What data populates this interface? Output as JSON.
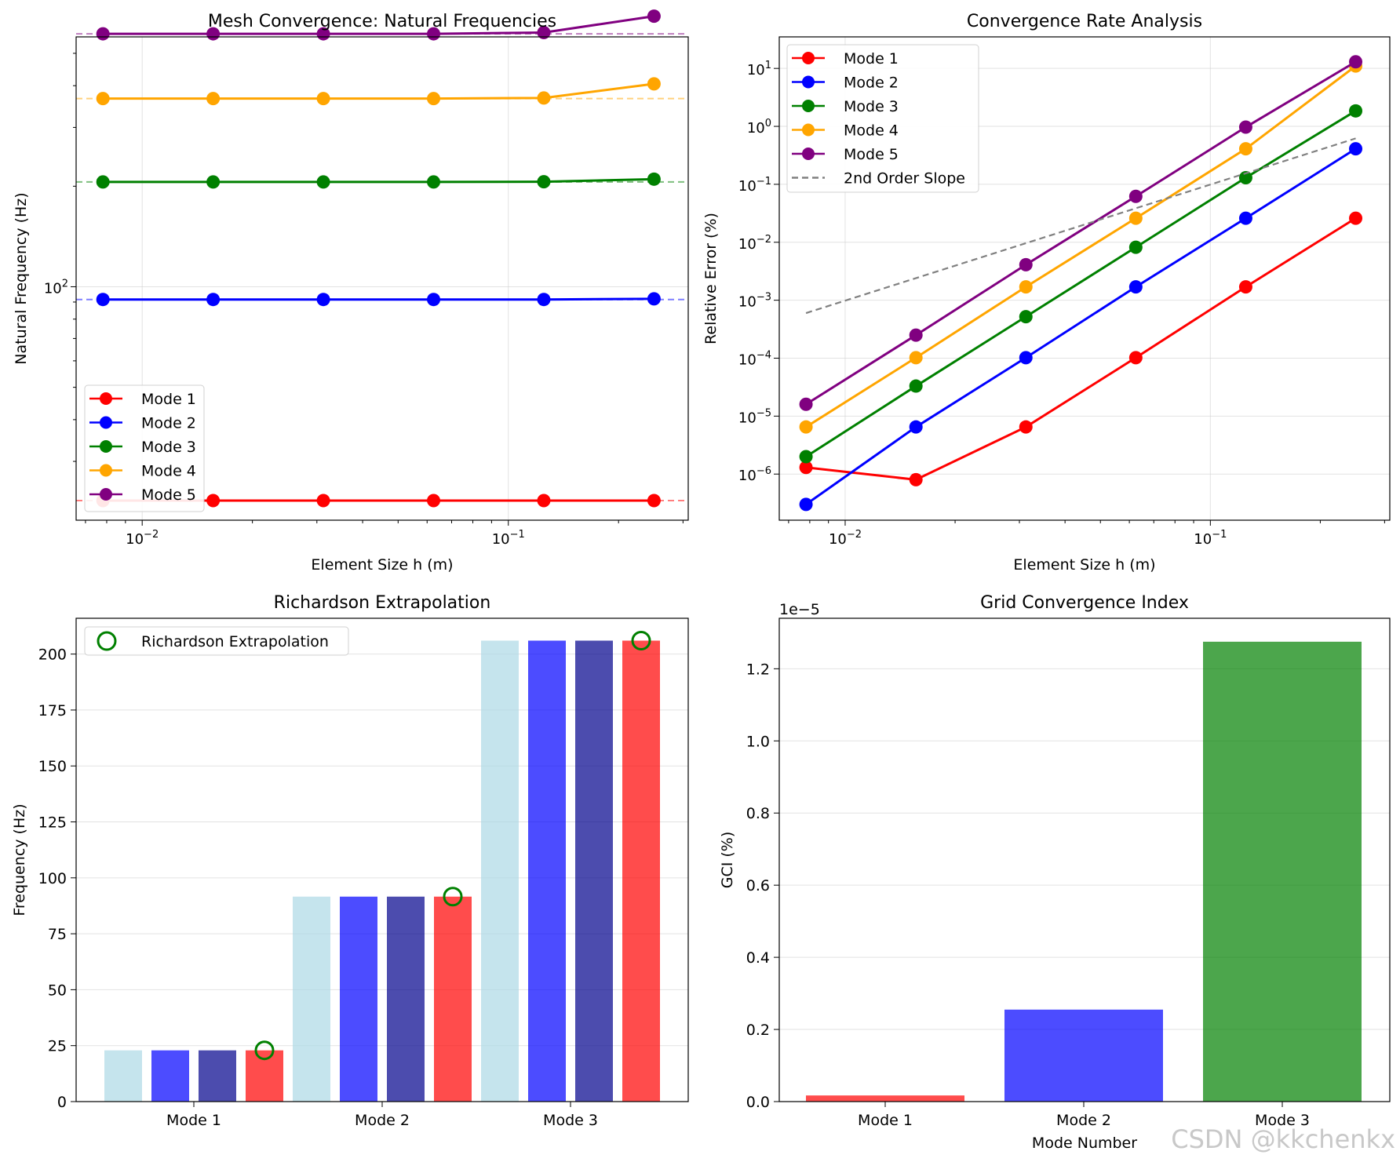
{
  "colors": {
    "mode_1": "#ff0000",
    "mode_2": "#0000ff",
    "mode_3": "#008000",
    "mode_4": "#ffa500",
    "mode_5": "#800080",
    "slope": "#808080"
  },
  "watermark": "CSDN @kkchenkx",
  "chart_data": [
    {
      "type": "line",
      "title": "Mesh Convergence: Natural Frequencies",
      "xlabel": "Element Size h (m)",
      "ylabel": "Natural Frequency (Hz)",
      "xscale": "log",
      "yscale": "log",
      "xlim": [
        0.0066,
        0.31
      ],
      "ylim": [
        20,
        560
      ],
      "x_tick_labels": [
        "10^-2",
        "10^-1"
      ],
      "y_tick_labels": [
        "10^2"
      ],
      "grid": true,
      "legend_position": "lower-left",
      "x": [
        0.0078125,
        0.015625,
        0.03125,
        0.0625,
        0.125,
        0.25
      ],
      "series": [
        {
          "name": "Mode 1",
          "values": [
            22.9,
            22.9,
            22.9,
            22.9,
            22.9,
            22.9
          ],
          "reference": 22.9
        },
        {
          "name": "Mode 2",
          "values": [
            91.6,
            91.6,
            91.6,
            91.6,
            91.6,
            92.0
          ],
          "reference": 91.6
        },
        {
          "name": "Mode 3",
          "values": [
            206,
            206,
            206,
            206,
            206.3,
            210
          ],
          "reference": 206
        },
        {
          "name": "Mode 4",
          "values": [
            366,
            366,
            366,
            366,
            367.5,
            405
          ],
          "reference": 366
        },
        {
          "name": "Mode 5",
          "values": [
            572,
            572,
            572,
            572,
            577,
            646
          ],
          "reference": 572
        }
      ]
    },
    {
      "type": "line",
      "title": "Convergence Rate Analysis",
      "xlabel": "Element Size h (m)",
      "ylabel": "Relative Error (%)",
      "xscale": "log",
      "yscale": "log",
      "xlim": [
        0.0066,
        0.31
      ],
      "ylim": [
        1.6e-07,
        35
      ],
      "x_tick_labels": [
        "10^-2",
        "10^-1"
      ],
      "y_tick_labels": [
        "10^-6",
        "10^-5",
        "10^-4",
        "10^-3",
        "10^-2",
        "10^-1",
        "10^0",
        "10^1"
      ],
      "grid": true,
      "legend_position": "top-left",
      "x": [
        0.0078125,
        0.015625,
        0.03125,
        0.0625,
        0.125,
        0.25
      ],
      "series": [
        {
          "name": "Mode 1",
          "values": [
            1.3e-06,
            8e-07,
            6.5e-06,
            0.000102,
            0.0017,
            0.026
          ]
        },
        {
          "name": "Mode 2",
          "values": [
            3e-07,
            6.5e-06,
            0.000102,
            0.0017,
            0.026,
            0.41
          ]
        },
        {
          "name": "Mode 3",
          "values": [
            2e-06,
            3.3e-05,
            0.00052,
            0.0082,
            0.13,
            1.85
          ]
        },
        {
          "name": "Mode 4",
          "values": [
            6.5e-06,
            0.000102,
            0.0017,
            0.026,
            0.41,
            11
          ]
        },
        {
          "name": "Mode 5",
          "values": [
            1.6e-05,
            0.00025,
            0.0041,
            0.062,
            0.97,
            13
          ]
        },
        {
          "name": "2nd Order Slope",
          "dashed": true,
          "x": [
            0.0078125,
            0.25
          ],
          "values": [
            0.0006,
            0.62
          ]
        }
      ]
    },
    {
      "type": "bar",
      "title": "Richardson Extrapolation",
      "xlabel": "",
      "ylabel": "Frequency (Hz)",
      "categories": [
        "Mode 1",
        "Mode 2",
        "Mode 3"
      ],
      "ylim": [
        0,
        216
      ],
      "y_ticks": [
        0,
        25,
        50,
        75,
        100,
        125,
        150,
        175,
        200
      ],
      "grid": true,
      "legend_position": "top-left",
      "series": [
        {
          "values": [
            22.9,
            91.6,
            206
          ],
          "color": "#add8e6",
          "opacity": 0.7
        },
        {
          "values": [
            22.9,
            91.6,
            206
          ],
          "color": "#0000ff",
          "opacity": 0.7
        },
        {
          "values": [
            22.9,
            91.6,
            206
          ],
          "color": "#00008b",
          "opacity": 0.7
        },
        {
          "values": [
            22.9,
            91.6,
            206
          ],
          "color": "#ff0000",
          "opacity": 0.7
        }
      ],
      "markers": {
        "name": "Richardson Extrapolation",
        "values": [
          22.9,
          91.6,
          206
        ],
        "color": "#008000"
      }
    },
    {
      "type": "bar",
      "title": "Grid Convergence Index",
      "xlabel": "Mode Number",
      "ylabel": "GCI (%)",
      "offset_label": "1e−5",
      "categories": [
        "Mode 1",
        "Mode 2",
        "Mode 3"
      ],
      "values": [
        0.017,
        0.255,
        1.275
      ],
      "bar_colors": [
        "#ff0000",
        "#0000ff",
        "#008000"
      ],
      "bar_opacity": 0.7,
      "ylim": [
        0,
        1.34
      ],
      "y_ticks": [
        "0.0",
        "0.2",
        "0.4",
        "0.6",
        "0.8",
        "1.0",
        "1.2"
      ],
      "grid": true
    }
  ]
}
